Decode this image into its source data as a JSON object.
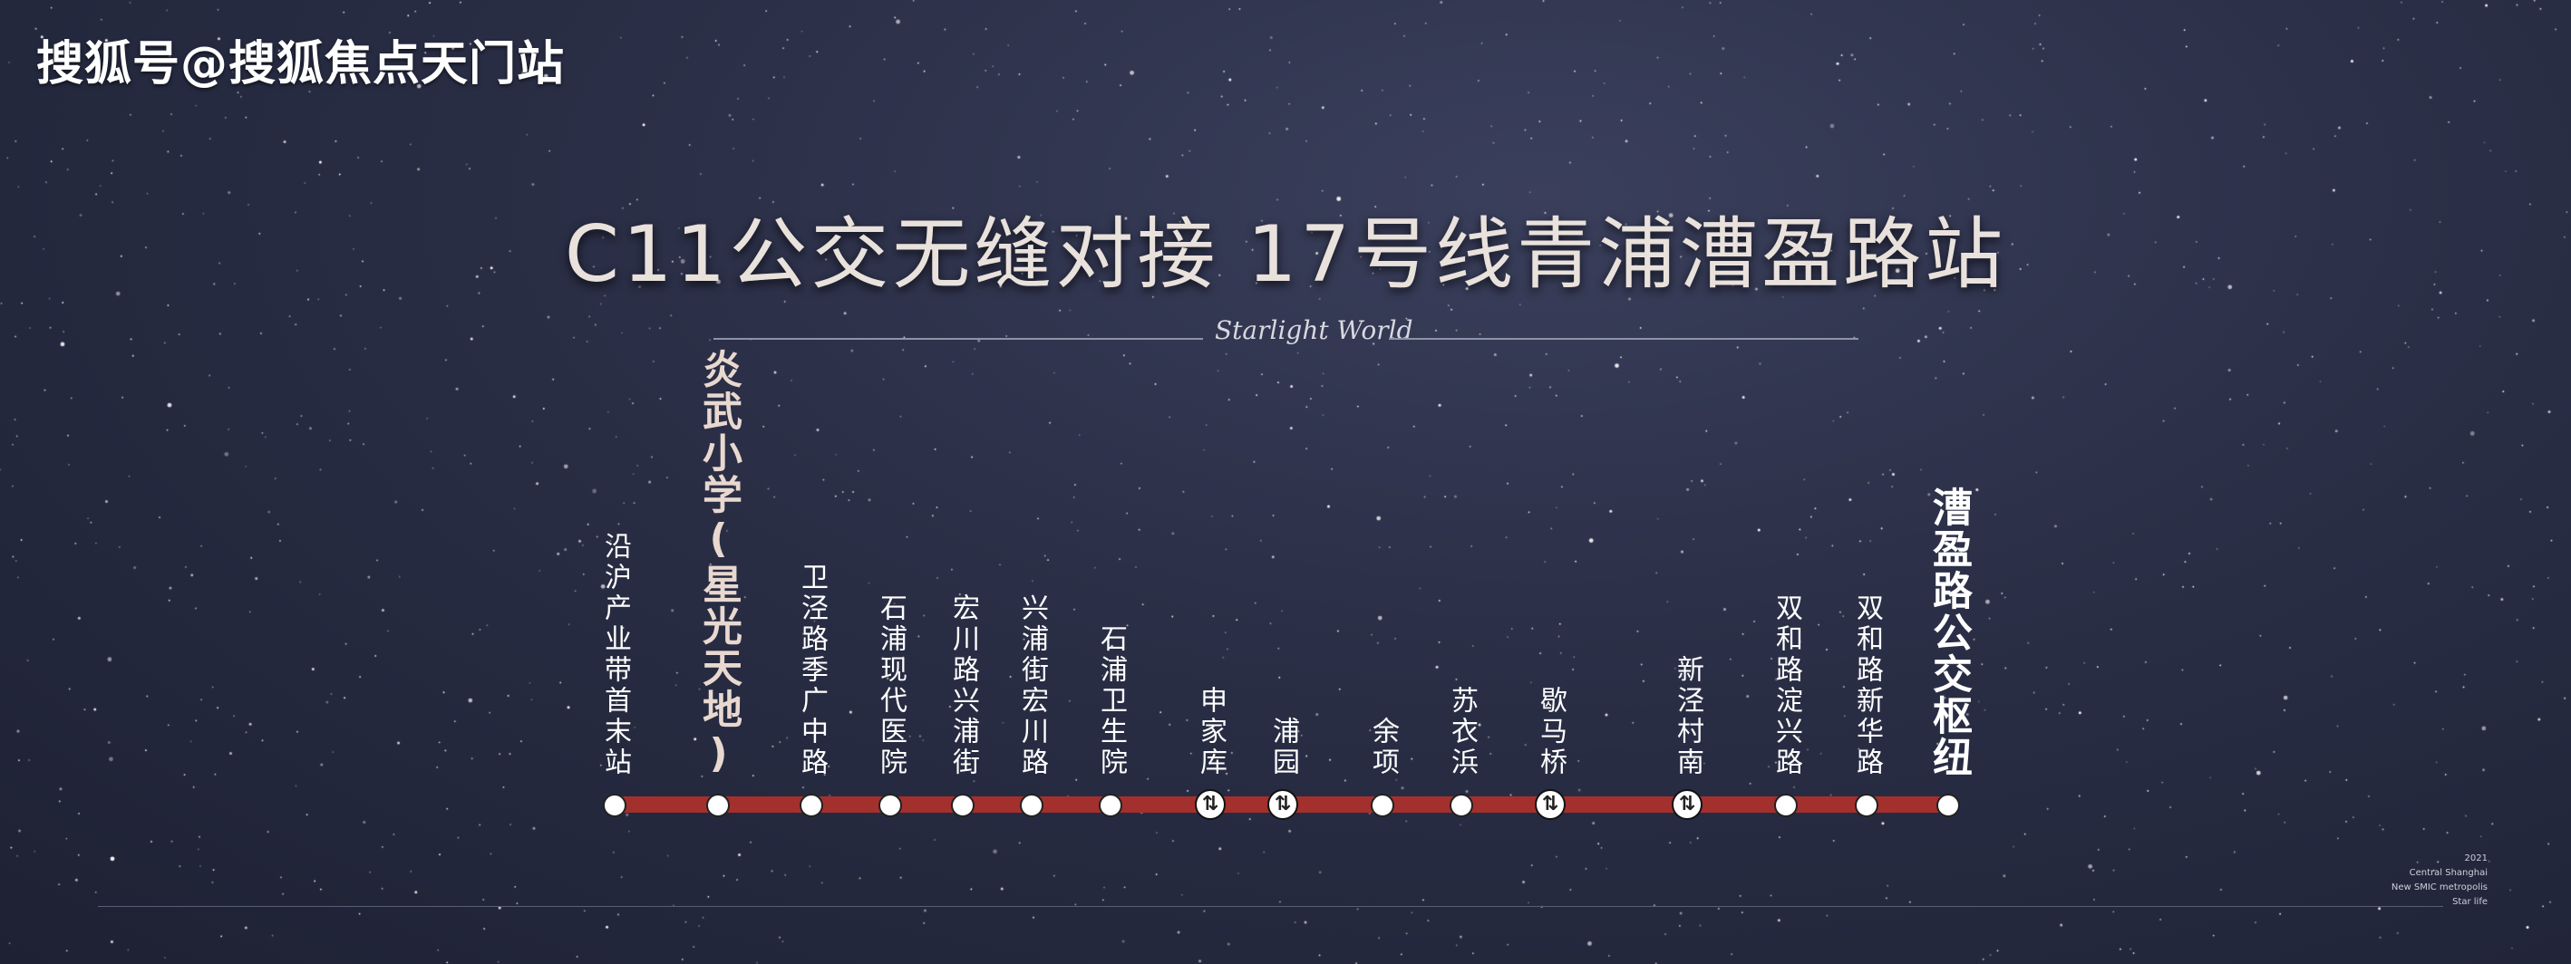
{
  "watermark": "搜狐号@搜狐焦点天门站",
  "title": "C11公交无缝对接  17号线青浦漕盈路站",
  "subtitle_script": "Starlight World",
  "route_color": "#a3302d",
  "stations": [
    {
      "name": "沿沪产业带首末站",
      "transfer": false
    },
    {
      "name": "炎武小学(星光天地)",
      "transfer": false,
      "highlight": true
    },
    {
      "name": "卫泾路季广中路",
      "transfer": false
    },
    {
      "name": "石浦现代医院",
      "transfer": false
    },
    {
      "name": "宏川路兴浦街",
      "transfer": false
    },
    {
      "name": "兴浦街宏川路",
      "transfer": false
    },
    {
      "name": "石浦卫生院",
      "transfer": false
    },
    {
      "name": "申家库",
      "transfer": true
    },
    {
      "name": "浦园",
      "transfer": true
    },
    {
      "name": "余项",
      "transfer": false
    },
    {
      "name": "苏衣浜",
      "transfer": false
    },
    {
      "name": "歇马桥",
      "transfer": true
    },
    {
      "name": "新泾村南",
      "transfer": true
    },
    {
      "name": "双和路淀兴路",
      "transfer": false
    },
    {
      "name": "双和路新华路",
      "transfer": false
    },
    {
      "name": "漕盈路公交枢纽",
      "transfer": false,
      "terminal": true
    }
  ],
  "transfer_icon": "transfer-arrows-icon",
  "footer": {
    "year": "2021",
    "line1": "Central Shanghai",
    "line2": "New SMIC metropolis",
    "line3": "Star life"
  }
}
